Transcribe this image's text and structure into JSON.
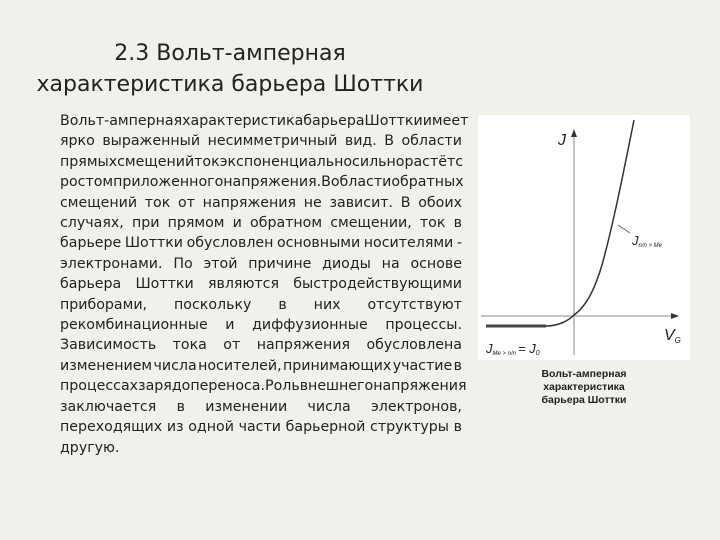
{
  "title": [
    "2.3 Вольт-амперная",
    "характеристика барьера Шоттки"
  ],
  "body_lines": [
    "Вольт-амперная характеристика барьера Шоттки имеет",
    "ярко выраженный несимметричный вид. В области",
    "прямых смещений ток экспоненциально сильно растёт с",
    "ростом приложенного напряжения. В области обратных",
    "смещений ток от напряжения не зависит. В обоих",
    "случаях, при прямом и обратном смещении, ток в",
    "барьере Шоттки обусловлен основными носителями -",
    "электронами. По этой причине диоды на основе",
    "барьера Шоттки являются быстродействующими",
    "приборами, поскольку в них отсутствуют",
    "рекомбинационные и диффузионные процессы.",
    "Зависимость тока от напряжения обусловлена",
    "изменением числа носителей, принимающих участие в",
    "процессах зарядопереноса. Роль внешнего напряжения",
    "заключается в изменении числа электронов,",
    "переходящих из одной части барьерной структуры в",
    "другую."
  ],
  "figure": {
    "y_axis_label": "J",
    "x_axis_label": "V",
    "x_axis_sub": "G",
    "forward_label": "J",
    "forward_sub": "n/n > Me",
    "reverse_label": "J",
    "reverse_sub": "Me > n/n",
    "reverse_eq": "= J",
    "reverse_eq_sub": "0",
    "caption": [
      "Вольт-амперная",
      "характеристика",
      "барьера Шоттки"
    ]
  }
}
